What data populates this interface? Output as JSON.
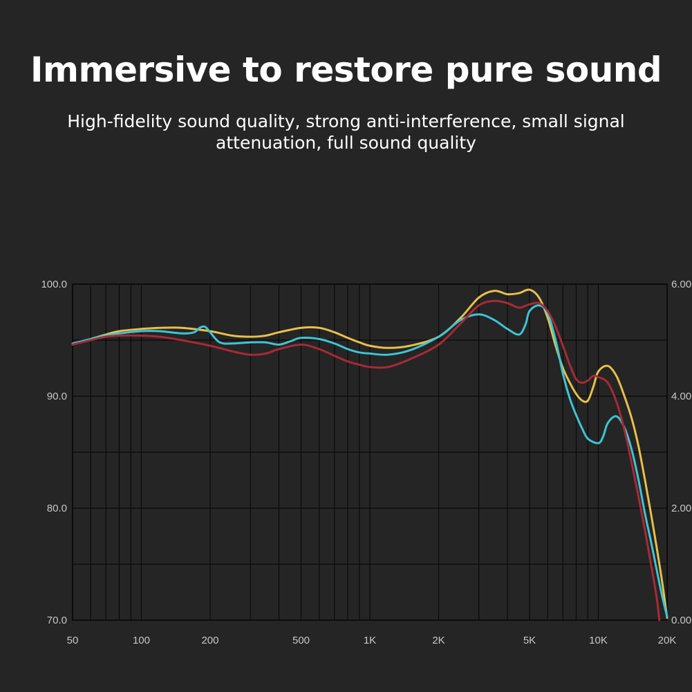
{
  "headline": "Immersive to restore pure sound",
  "subline": "High-fidelity sound quality, strong anti-interference, small signal attenuation, full sound quality",
  "chart_data": {
    "type": "line",
    "title": "",
    "xlabel": "",
    "ylabel": "",
    "x_scale": "log",
    "xlim": [
      50,
      20000
    ],
    "ylim": [
      70,
      100
    ],
    "y2lim": [
      0,
      6
    ],
    "x_ticks": [
      {
        "value": 50,
        "label": "50"
      },
      {
        "value": 100,
        "label": "100"
      },
      {
        "value": 200,
        "label": "200"
      },
      {
        "value": 500,
        "label": "500"
      },
      {
        "value": 1000,
        "label": "1K"
      },
      {
        "value": 2000,
        "label": "2K"
      },
      {
        "value": 5000,
        "label": "5K"
      },
      {
        "value": 10000,
        "label": "10K"
      },
      {
        "value": 20000,
        "label": "20K"
      }
    ],
    "y_ticks": [
      {
        "value": 100,
        "label": "100.0"
      },
      {
        "value": 90,
        "label": "90.0"
      },
      {
        "value": 80,
        "label": "80.0"
      },
      {
        "value": 70,
        "label": "70.0"
      }
    ],
    "y2_ticks": [
      {
        "value": 6,
        "label": "6.00"
      },
      {
        "value": 4,
        "label": "4.00"
      },
      {
        "value": 2,
        "label": "2.00"
      },
      {
        "value": 0,
        "label": "0.00"
      }
    ],
    "grid": true,
    "legend": "none",
    "series": [
      {
        "color": "#e8c04a",
        "points": [
          [
            50,
            94.6
          ],
          [
            60,
            95.1
          ],
          [
            70,
            95.5
          ],
          [
            80,
            95.8
          ],
          [
            100,
            96.0
          ],
          [
            120,
            96.1
          ],
          [
            150,
            96.1
          ],
          [
            200,
            95.8
          ],
          [
            250,
            95.4
          ],
          [
            300,
            95.3
          ],
          [
            350,
            95.4
          ],
          [
            400,
            95.7
          ],
          [
            500,
            96.1
          ],
          [
            600,
            96.1
          ],
          [
            700,
            95.7
          ],
          [
            800,
            95.2
          ],
          [
            900,
            94.8
          ],
          [
            1000,
            94.5
          ],
          [
            1200,
            94.3
          ],
          [
            1500,
            94.5
          ],
          [
            2000,
            95.3
          ],
          [
            2500,
            97.0
          ],
          [
            3000,
            98.8
          ],
          [
            3500,
            99.4
          ],
          [
            4000,
            99.1
          ],
          [
            4500,
            99.2
          ],
          [
            5000,
            99.5
          ],
          [
            5500,
            98.8
          ],
          [
            6000,
            97.0
          ],
          [
            6500,
            94.5
          ],
          [
            7000,
            92.5
          ],
          [
            7500,
            91.2
          ],
          [
            8000,
            90.2
          ],
          [
            8500,
            89.6
          ],
          [
            9000,
            89.6
          ],
          [
            9500,
            90.8
          ],
          [
            10000,
            92.2
          ],
          [
            11000,
            92.7
          ],
          [
            12000,
            91.8
          ],
          [
            13000,
            90.0
          ],
          [
            14000,
            88.0
          ],
          [
            15000,
            85.5
          ],
          [
            16000,
            82.5
          ],
          [
            17000,
            79.5
          ],
          [
            18000,
            76.5
          ],
          [
            19000,
            73.5
          ],
          [
            20000,
            70.2
          ]
        ]
      },
      {
        "color": "#3fc4d4",
        "points": [
          [
            50,
            94.7
          ],
          [
            60,
            95.1
          ],
          [
            70,
            95.4
          ],
          [
            80,
            95.6
          ],
          [
            100,
            95.8
          ],
          [
            120,
            95.8
          ],
          [
            150,
            95.6
          ],
          [
            170,
            95.7
          ],
          [
            180,
            96.1
          ],
          [
            190,
            96.2
          ],
          [
            200,
            95.7
          ],
          [
            220,
            94.8
          ],
          [
            250,
            94.7
          ],
          [
            300,
            94.8
          ],
          [
            350,
            94.8
          ],
          [
            400,
            94.6
          ],
          [
            450,
            94.9
          ],
          [
            500,
            95.2
          ],
          [
            600,
            95.1
          ],
          [
            700,
            94.7
          ],
          [
            800,
            94.2
          ],
          [
            900,
            93.9
          ],
          [
            1000,
            93.8
          ],
          [
            1200,
            93.7
          ],
          [
            1500,
            94.1
          ],
          [
            2000,
            95.3
          ],
          [
            2500,
            96.8
          ],
          [
            3000,
            97.3
          ],
          [
            3500,
            96.8
          ],
          [
            4000,
            96.0
          ],
          [
            4500,
            95.5
          ],
          [
            4800,
            96.4
          ],
          [
            5000,
            97.6
          ],
          [
            5500,
            98.1
          ],
          [
            6000,
            97.4
          ],
          [
            6500,
            95.0
          ],
          [
            7000,
            92.0
          ],
          [
            7500,
            89.8
          ],
          [
            8000,
            88.3
          ],
          [
            8500,
            87.1
          ],
          [
            9000,
            86.2
          ],
          [
            10000,
            85.8
          ],
          [
            10500,
            86.4
          ],
          [
            11000,
            87.6
          ],
          [
            12000,
            88.2
          ],
          [
            13000,
            87.2
          ],
          [
            14000,
            85.2
          ],
          [
            15000,
            82.5
          ],
          [
            16000,
            79.5
          ],
          [
            17000,
            77.0
          ],
          [
            18000,
            74.5
          ],
          [
            19000,
            72.2
          ],
          [
            20000,
            70.3
          ]
        ]
      },
      {
        "color": "#a82a35",
        "points": [
          [
            50,
            94.6
          ],
          [
            60,
            95.0
          ],
          [
            70,
            95.3
          ],
          [
            80,
            95.4
          ],
          [
            100,
            95.4
          ],
          [
            120,
            95.3
          ],
          [
            150,
            95.0
          ],
          [
            200,
            94.5
          ],
          [
            250,
            94.0
          ],
          [
            300,
            93.7
          ],
          [
            350,
            93.8
          ],
          [
            400,
            94.2
          ],
          [
            500,
            94.6
          ],
          [
            600,
            94.2
          ],
          [
            700,
            93.6
          ],
          [
            800,
            93.1
          ],
          [
            900,
            92.8
          ],
          [
            1000,
            92.6
          ],
          [
            1200,
            92.6
          ],
          [
            1500,
            93.3
          ],
          [
            2000,
            94.6
          ],
          [
            2500,
            96.5
          ],
          [
            3000,
            98.1
          ],
          [
            3500,
            98.5
          ],
          [
            4000,
            98.3
          ],
          [
            4500,
            97.9
          ],
          [
            5000,
            98.2
          ],
          [
            5500,
            98.3
          ],
          [
            6000,
            97.6
          ],
          [
            6500,
            96.2
          ],
          [
            7000,
            94.5
          ],
          [
            7500,
            92.8
          ],
          [
            8000,
            91.5
          ],
          [
            8500,
            91.2
          ],
          [
            9000,
            91.4
          ],
          [
            9500,
            91.8
          ],
          [
            10000,
            91.7
          ],
          [
            11000,
            91.2
          ],
          [
            12000,
            89.5
          ],
          [
            13000,
            87.0
          ],
          [
            14000,
            84.0
          ],
          [
            15000,
            81.0
          ],
          [
            16000,
            78.0
          ],
          [
            17000,
            75.0
          ],
          [
            18000,
            72.0
          ],
          [
            18500,
            70.0
          ]
        ]
      }
    ]
  }
}
